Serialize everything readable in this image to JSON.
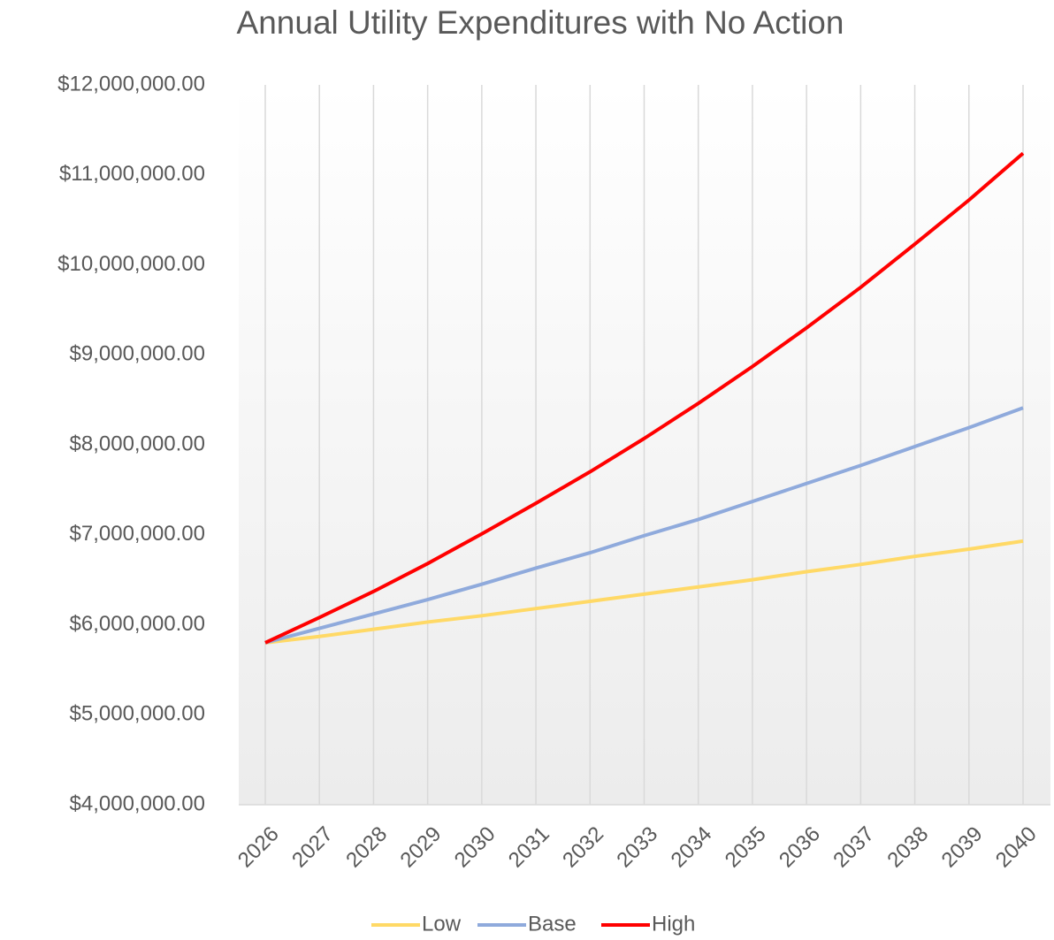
{
  "chart_data": {
    "type": "line",
    "title": "Annual Utility Expenditures with No Action",
    "categories": [
      "2026",
      "2027",
      "2028",
      "2029",
      "2030",
      "2031",
      "2032",
      "2033",
      "2034",
      "2035",
      "2036",
      "2037",
      "2038",
      "2039",
      "2040"
    ],
    "series": [
      {
        "name": "Low",
        "color": "#ffd966",
        "values": [
          5800000,
          5870000,
          5950000,
          6030000,
          6100000,
          6180000,
          6260000,
          6340000,
          6420000,
          6500000,
          6590000,
          6670000,
          6760000,
          6840000,
          6930000
        ]
      },
      {
        "name": "Base",
        "color": "#8faadc",
        "values": [
          5800000,
          5960000,
          6120000,
          6280000,
          6450000,
          6630000,
          6800000,
          6990000,
          7170000,
          7370000,
          7570000,
          7770000,
          7980000,
          8190000,
          8410000
        ]
      },
      {
        "name": "High",
        "color": "#ff0000",
        "values": [
          5800000,
          6080000,
          6370000,
          6680000,
          7010000,
          7350000,
          7700000,
          8070000,
          8460000,
          8870000,
          9300000,
          9750000,
          10230000,
          10720000,
          11240000
        ]
      }
    ],
    "ylim": [
      4000000,
      12000000
    ],
    "yticks": [
      {
        "value": 4000000,
        "label": "$4,000,000.00"
      },
      {
        "value": 5000000,
        "label": "$5,000,000.00"
      },
      {
        "value": 6000000,
        "label": "$6,000,000.00"
      },
      {
        "value": 7000000,
        "label": "$7,000,000.00"
      },
      {
        "value": 8000000,
        "label": "$8,000,000.00"
      },
      {
        "value": 9000000,
        "label": "$9,000,000.00"
      },
      {
        "value": 10000000,
        "label": "$10,000,000.00"
      },
      {
        "value": 11000000,
        "label": "$11,000,000.00"
      },
      {
        "value": 12000000,
        "label": "$12,000,000.00"
      }
    ],
    "grid": true,
    "legend": "bottom"
  }
}
